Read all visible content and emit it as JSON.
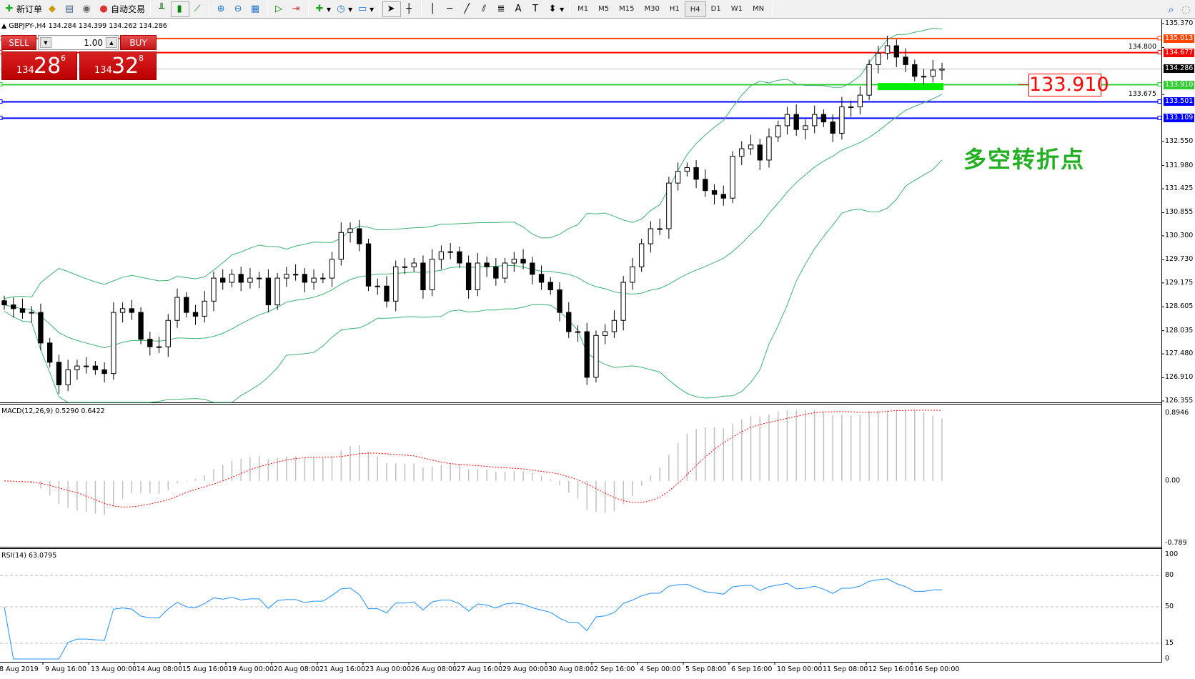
{
  "toolbar": {
    "new_order": "新订单",
    "auto_trading": "自动交易",
    "timeframes": [
      "M1",
      "M5",
      "M15",
      "M30",
      "H1",
      "H4",
      "D1",
      "W1",
      "MN"
    ],
    "selected_timeframe": "H4"
  },
  "chart": {
    "header": "GBPJPY-,H4  134.284 134.399 134.262 134.286",
    "symbol": "GBPJPY-",
    "timeframe": "H4",
    "ohlc": {
      "open": 134.284,
      "high": 134.399,
      "low": 134.262,
      "close": 134.286
    }
  },
  "trade_panel": {
    "sell_label": "SELL",
    "buy_label": "BUY",
    "lot": "1.00",
    "sell_price": {
      "small": "134",
      "big": "28",
      "sup": "6"
    },
    "buy_price": {
      "small": "134",
      "big": "32",
      "sup": "8"
    }
  },
  "price_axis": [
    "135.370",
    "134.800",
    "133.675",
    "132.550",
    "131.980",
    "131.425",
    "130.855",
    "130.300",
    "129.730",
    "129.175",
    "128.605",
    "128.035",
    "127.480",
    "126.910",
    "126.355"
  ],
  "price_range": [
    126.355,
    135.37
  ],
  "hlines": [
    {
      "price": "135.013",
      "color": "#ff4500"
    },
    {
      "price": "134.677",
      "color": "#ff0000"
    },
    {
      "price": "133.910",
      "color": "#32cd32"
    },
    {
      "price": "133.501",
      "color": "#0000ff"
    },
    {
      "price": "133.109",
      "color": "#0000ff"
    }
  ],
  "bid_line": {
    "price": "134.286",
    "color": "#000000"
  },
  "zone": {
    "from": 133.78,
    "to": 133.95,
    "color": "#00ee00"
  },
  "annotations": {
    "level_label": "133.910",
    "level_color": "#ff0000",
    "note": "多空转折点",
    "note_color": "#22b022"
  },
  "macd": {
    "label": "MACD(12,26,9) 0.5290 0.6422",
    "axis": [
      "0.8946",
      "0.00",
      "-0.789"
    ],
    "range": [
      -0.789,
      0.8946
    ],
    "hist_color": "#c0c0c0",
    "signal_color": "#ff0000"
  },
  "rsi": {
    "label": "RSI(14) 63.0795",
    "axis": [
      "100",
      "80",
      "50",
      "15",
      "0"
    ],
    "levels": [
      80,
      50,
      15
    ],
    "color": "#1e90ff"
  },
  "time_axis": [
    "8 Aug 2019",
    "9 Aug 16:00",
    "13 Aug 00:00",
    "14 Aug 08:00",
    "15 Aug 16:00",
    "19 Aug 00:00",
    "20 Aug 08:00",
    "21 Aug 16:00",
    "23 Aug 00:00",
    "26 Aug 08:00",
    "27 Aug 16:00",
    "29 Aug 00:00",
    "30 Aug 08:00",
    "2 Sep 16:00",
    "4 Sep 00:00",
    "5 Sep 08:00",
    "6 Sep 16:00",
    "10 Sep 00:00",
    "11 Sep 08:00",
    "12 Sep 16:00",
    "16 Sep 00:00"
  ],
  "chart_data": {
    "type": "candlestick",
    "indicators": [
      "Bollinger Bands",
      "MACD(12,26,9)",
      "RSI(14)"
    ],
    "band_color": "#3cb371",
    "closes": [
      128.65,
      128.56,
      128.47,
      128.47,
      127.74,
      127.28,
      126.74,
      127.1,
      127.19,
      127.19,
      127.1,
      127.01,
      128.47,
      128.56,
      128.47,
      127.83,
      127.65,
      127.65,
      128.28,
      128.83,
      128.47,
      128.38,
      128.74,
      129.29,
      129.19,
      129.38,
      129.19,
      129.29,
      129.29,
      128.65,
      129.29,
      129.38,
      129.38,
      129.19,
      129.29,
      129.29,
      129.74,
      130.38,
      130.47,
      130.11,
      129.1,
      129.1,
      128.74,
      129.56,
      129.56,
      129.65,
      129.01,
      129.74,
      129.92,
      129.92,
      129.65,
      129.01,
      129.65,
      129.56,
      129.29,
      129.65,
      129.74,
      129.65,
      129.38,
      129.19,
      129.01,
      128.47,
      128.01,
      128.01,
      126.92,
      127.92,
      128.01,
      128.28,
      129.19,
      129.56,
      130.11,
      130.47,
      130.47,
      131.56,
      131.84,
      131.93,
      131.65,
      131.38,
      131.29,
      131.2,
      132.2,
      132.38,
      132.47,
      132.11,
      132.66,
      132.93,
      133.2,
      132.84,
      132.93,
      133.2,
      133.02,
      132.75,
      133.38,
      133.38,
      133.66,
      134.39,
      134.66,
      134.84,
      134.57,
      134.39,
      134.11,
      134.11,
      134.26,
      134.286
    ]
  }
}
